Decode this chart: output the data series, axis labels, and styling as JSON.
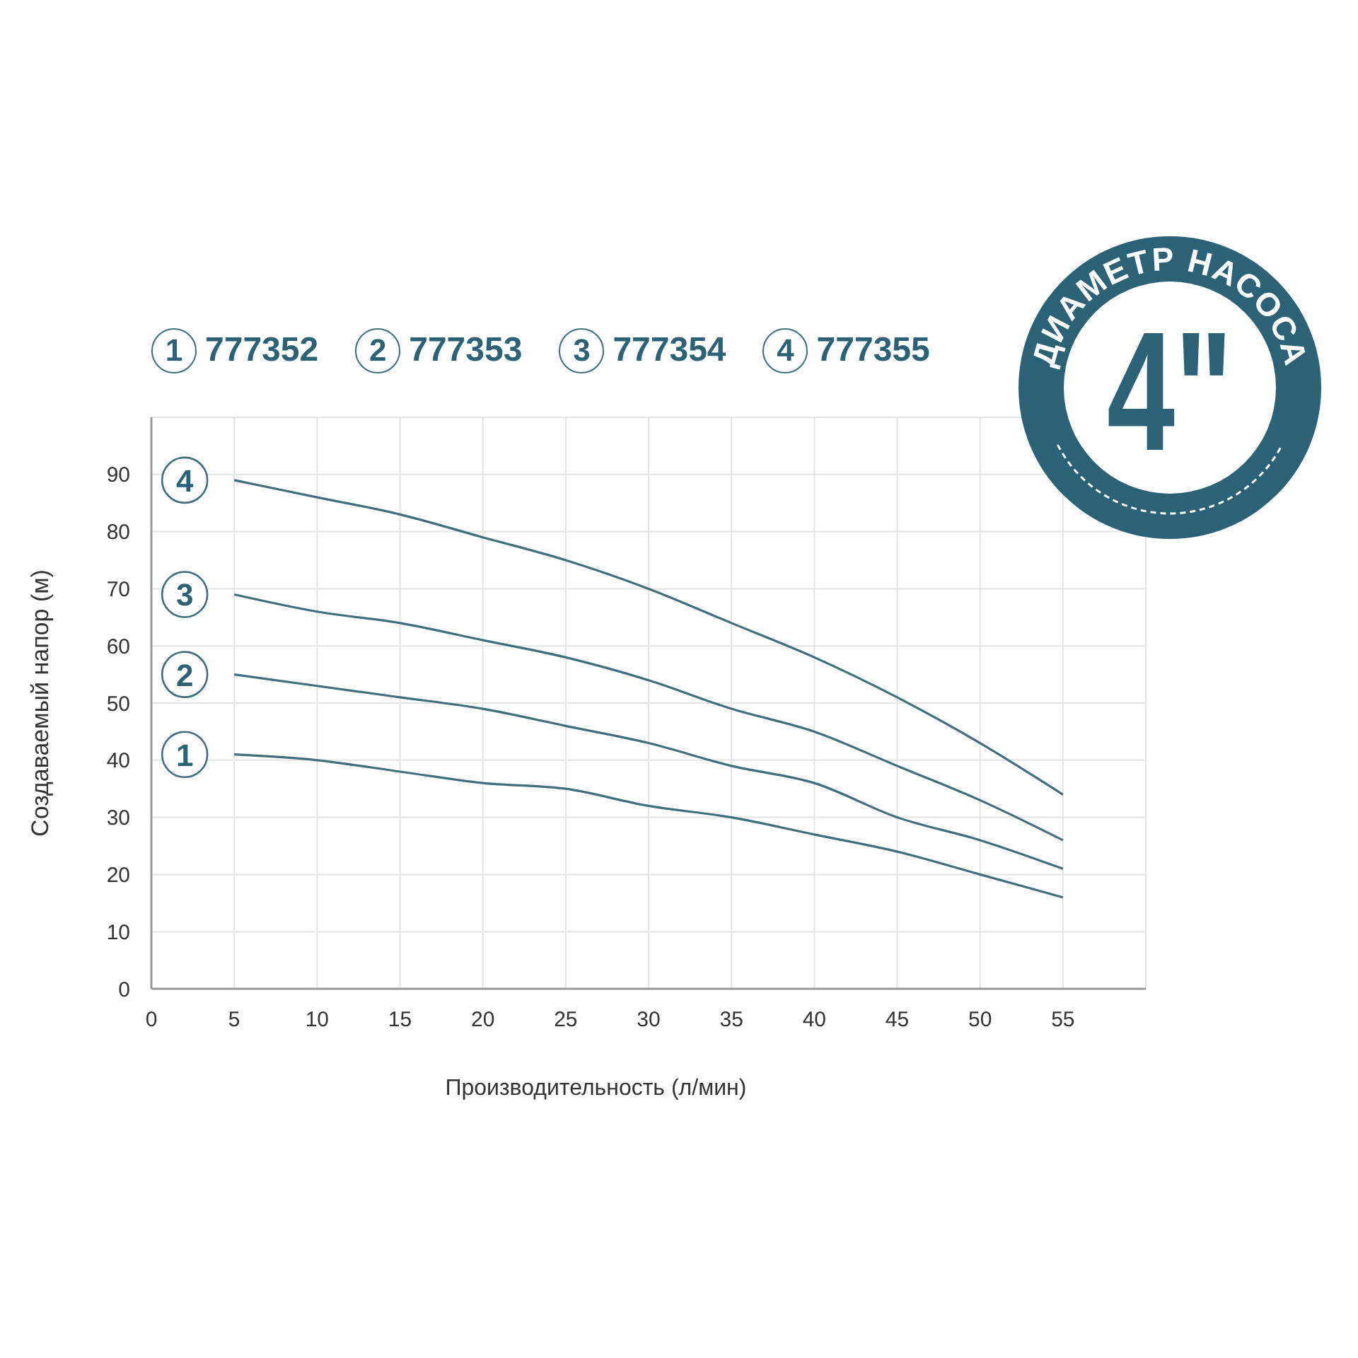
{
  "chart_data": {
    "type": "line",
    "xlabel": "Производительность (л/мин)",
    "ylabel": "Создаваемый напор (м)",
    "x": [
      5,
      10,
      15,
      20,
      25,
      30,
      35,
      40,
      45,
      50,
      55
    ],
    "series": [
      {
        "name": "777352",
        "color": "#3f6e7c",
        "values": [
          41,
          40,
          38,
          36,
          35,
          32,
          30,
          27,
          24,
          20,
          16
        ]
      },
      {
        "name": "777353",
        "color": "#3f6e7c",
        "values": [
          55,
          53,
          51,
          49,
          46,
          43,
          39,
          36,
          30,
          26,
          21
        ]
      },
      {
        "name": "777354",
        "color": "#3f6e7c",
        "values": [
          69,
          66,
          64,
          61,
          58,
          54,
          49,
          45,
          39,
          33,
          26
        ]
      },
      {
        "name": "777355",
        "color": "#3f6e7c",
        "values": [
          89,
          86,
          83,
          79,
          75,
          70,
          64,
          58,
          51,
          43,
          34
        ]
      }
    ],
    "xlim": [
      0,
      60
    ],
    "xticks": [
      0,
      5,
      10,
      15,
      20,
      25,
      30,
      35,
      40,
      45,
      50,
      55
    ],
    "ylim": [
      0,
      100
    ],
    "yticks": [
      0,
      10,
      20,
      30,
      40,
      50,
      60,
      70,
      80,
      90
    ],
    "annotations": [
      "1",
      "2",
      "3",
      "4",
      "ДИАМЕТР НАСОСА",
      "4\""
    ],
    "grid": true,
    "legend": "top left"
  }
}
